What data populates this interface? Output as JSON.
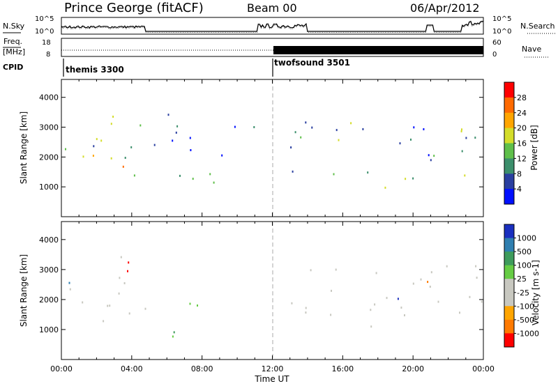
{
  "header": {
    "station": "Prince George (fitACF)",
    "beam": "Beam 00",
    "date": "06/Apr/2012"
  },
  "noise_panel": {
    "left_label": "N.Sky",
    "right_label": "N.Search",
    "left_ticks": [
      "10^5",
      "10^0"
    ],
    "right_ticks": [
      "10^5",
      "10^0"
    ]
  },
  "freq_panel": {
    "left_label_1": "Freq.",
    "left_label_2": "[MHz]",
    "left_ticks": [
      "18",
      "8"
    ],
    "right_label": "Nave",
    "right_ticks": [
      "60",
      "0"
    ]
  },
  "cpid": {
    "label": "CPID",
    "modes": [
      {
        "name": "themis 3300",
        "start_hour": 0
      },
      {
        "name": "twofsound 3501",
        "start_hour": 12
      }
    ]
  },
  "x_axis": {
    "label": "Time UT",
    "ticks": [
      "00:00",
      "04:00",
      "08:00",
      "12:00",
      "16:00",
      "20:00",
      "00:00"
    ]
  },
  "chart_data": [
    {
      "type": "heatmap",
      "panel": "power",
      "ylabel": "Slant Range [km]",
      "yticks": [
        "1000",
        "2000",
        "3000",
        "4000"
      ],
      "ylim": [
        0,
        4600
      ],
      "xlim_hours": [
        0,
        24
      ],
      "colorbar_label": "Power [dB]",
      "colorbar_ticks": [
        "28",
        "24",
        "20",
        "16",
        "12",
        "8",
        "4"
      ],
      "colorbar_colors": [
        "#ff0000",
        "#ff6a00",
        "#ffa500",
        "#d4dd2a",
        "#5fbf4a",
        "#3c8f6c",
        "#2a3fa0",
        "#0010ff"
      ],
      "regions": [
        {
          "t0": 0.2,
          "t1": 5.0,
          "r0": 1100,
          "r1": 2400,
          "level": "high"
        },
        {
          "t0": 0.3,
          "t1": 4.8,
          "r0": 2200,
          "r1": 3500,
          "level": "medium"
        },
        {
          "t0": 5.0,
          "t1": 9.5,
          "r0": 2000,
          "r1": 3600,
          "level": "low"
        },
        {
          "t0": 6.0,
          "t1": 8.8,
          "r0": 700,
          "r1": 1900,
          "level": "medium"
        },
        {
          "t0": 9.5,
          "t1": 13.8,
          "r0": 2800,
          "r1": 3400,
          "level": "low"
        },
        {
          "t0": 13.0,
          "t1": 24.0,
          "r0": 1000,
          "r1": 3200,
          "level": "medium"
        }
      ]
    },
    {
      "type": "heatmap",
      "panel": "velocity",
      "ylabel": "Slant Range [km]",
      "yticks": [
        "1000",
        "2000",
        "3000",
        "4000"
      ],
      "ylim": [
        0,
        4600
      ],
      "xlim_hours": [
        0,
        24
      ],
      "colorbar_label": "Velocity [m s-1]",
      "colorbar_ticks": [
        "1000",
        "500",
        "100",
        "25",
        "-25",
        "-100",
        "-500",
        "-1000"
      ],
      "colorbar_colors": [
        "#1a2fbf",
        "#2f7fb0",
        "#3e9b5c",
        "#66cc44",
        "#c8c8c0",
        "#c8c8c0",
        "#ffa500",
        "#ff7a00",
        "#ff0000"
      ],
      "regions": [
        {
          "t0": 0.2,
          "t1": 5.0,
          "r0": 1100,
          "r1": 2400,
          "level": "ground"
        },
        {
          "t0": 0.3,
          "t1": 4.8,
          "r0": 2200,
          "r1": 3500,
          "level": "mixed"
        },
        {
          "t0": 6.0,
          "t1": 8.8,
          "r0": 700,
          "r1": 1900,
          "level": "positive"
        },
        {
          "t0": 13.0,
          "t1": 24.0,
          "r0": 1000,
          "r1": 3200,
          "level": "ground"
        }
      ]
    }
  ]
}
